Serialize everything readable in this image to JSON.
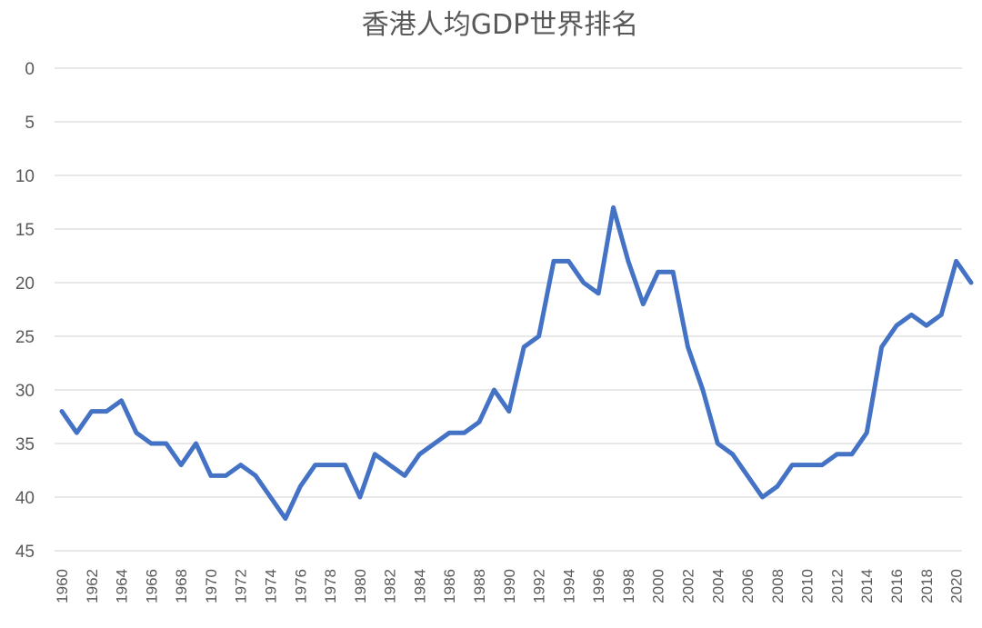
{
  "chart_data": {
    "type": "line",
    "title": "香港人均GDP世界排名",
    "xlabel": "",
    "ylabel": "",
    "y_reversed": true,
    "ylim": [
      0,
      45
    ],
    "yticks": [
      0,
      5,
      10,
      15,
      20,
      25,
      30,
      35,
      40,
      45
    ],
    "grid": true,
    "legend": "none",
    "x": [
      1960,
      1961,
      1962,
      1963,
      1964,
      1965,
      1966,
      1967,
      1968,
      1969,
      1970,
      1971,
      1972,
      1973,
      1974,
      1975,
      1976,
      1977,
      1978,
      1979,
      1980,
      1981,
      1982,
      1983,
      1984,
      1985,
      1986,
      1987,
      1988,
      1989,
      1990,
      1991,
      1992,
      1993,
      1994,
      1995,
      1996,
      1997,
      1998,
      1999,
      2000,
      2001,
      2002,
      2003,
      2004,
      2005,
      2006,
      2007,
      2008,
      2009,
      2010,
      2011,
      2012,
      2013,
      2014,
      2015,
      2016,
      2017,
      2018,
      2019,
      2020,
      2021
    ],
    "x_tick_labels": [
      "1960",
      "1962",
      "1964",
      "1966",
      "1968",
      "1970",
      "1972",
      "1974",
      "1976",
      "1978",
      "1980",
      "1982",
      "1984",
      "1986",
      "1988",
      "1990",
      "1992",
      "1994",
      "1996",
      "1998",
      "2000",
      "2002",
      "2004",
      "2006",
      "2008",
      "2010",
      "2012",
      "2014",
      "2016",
      "2018",
      "2020"
    ],
    "series": [
      {
        "color": "#4472C4",
        "values": [
          32,
          34,
          32,
          32,
          31,
          34,
          35,
          35,
          37,
          35,
          38,
          38,
          37,
          38,
          40,
          42,
          39,
          37,
          37,
          37,
          40,
          36,
          37,
          38,
          36,
          35,
          34,
          34,
          33,
          30,
          32,
          26,
          25,
          18,
          18,
          20,
          21,
          13,
          18,
          22,
          19,
          19,
          26,
          30,
          35,
          36,
          38,
          40,
          39,
          37,
          37,
          37,
          36,
          36,
          34,
          26,
          24,
          23,
          24,
          23,
          18,
          20
        ]
      }
    ]
  }
}
